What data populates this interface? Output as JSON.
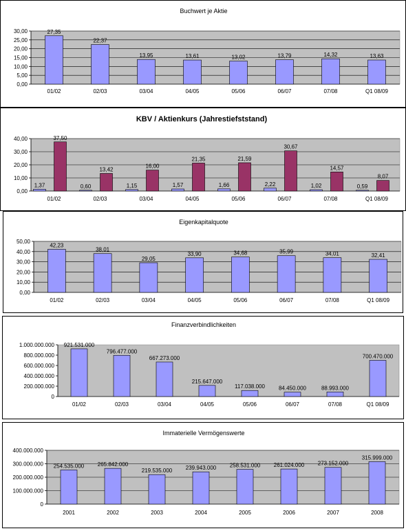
{
  "colors": {
    "bar_primary": "#9999ff",
    "bar_secondary": "#993366",
    "plot_background": "#c0c0c0",
    "gridline": "#000000",
    "bar_outline": "#000000"
  },
  "chart_data": [
    {
      "type": "bar",
      "title": "Buchwert je Aktie",
      "categories": [
        "01/02",
        "02/03",
        "03/04",
        "04/05",
        "05/06",
        "06/07",
        "07/08",
        "Q1 08/09"
      ],
      "series": [
        {
          "values": [
            27.35,
            22.37,
            13.95,
            13.61,
            13.02,
            13.79,
            14.32,
            13.63
          ]
        }
      ],
      "value_labels": [
        "27,35",
        "22,37",
        "13,95",
        "13,61",
        "13,02",
        "13,79",
        "14,32",
        "13,63"
      ],
      "ytick_labels": [
        "30,00",
        "25,00",
        "20,00",
        "15,00",
        "10,00",
        "5,00",
        "0,00"
      ],
      "yticks": [
        30,
        25,
        20,
        15,
        10,
        5,
        0
      ],
      "ylim": [
        0,
        30
      ],
      "grid": true,
      "legend": "none"
    },
    {
      "type": "bar",
      "title": "KBV / Aktienkurs (Jahrestiefststand)",
      "categories": [
        "01/02",
        "02/03",
        "03/04",
        "04/05",
        "05/06",
        "06/07",
        "07/08",
        "Q1 08/09"
      ],
      "series": [
        {
          "values": [
            1.37,
            0.6,
            1.15,
            1.57,
            1.66,
            2.22,
            1.02,
            0.59
          ],
          "value_labels": [
            "1,37",
            "0,60",
            "1,15",
            "1,57",
            "1,66",
            "2,22",
            "1,02",
            "0,59"
          ]
        },
        {
          "values": [
            37.5,
            13.42,
            16.0,
            21.35,
            21.59,
            30.67,
            14.57,
            8.07
          ],
          "value_labels": [
            "37,50",
            "13,42",
            "16,00",
            "21,35",
            "21,59",
            "30,67",
            "14,57",
            "8,07"
          ]
        }
      ],
      "ytick_labels": [
        "40,00",
        "30,00",
        "20,00",
        "10,00",
        "0,00"
      ],
      "yticks": [
        40,
        30,
        20,
        10,
        0
      ],
      "ylim": [
        0,
        40
      ],
      "grid": true,
      "legend": "none"
    },
    {
      "type": "bar",
      "title": "Eigenkapitalquote",
      "categories": [
        "01/02",
        "02/03",
        "03/04",
        "04/05",
        "05/06",
        "06/07",
        "07/08",
        "Q1 08/09"
      ],
      "series": [
        {
          "values": [
            42.23,
            38.01,
            29.05,
            33.9,
            34.68,
            35.99,
            34.01,
            32.41
          ]
        }
      ],
      "value_labels": [
        "42,23",
        "38,01",
        "29,05",
        "33,90",
        "34,68",
        "35,99",
        "34,01",
        "32,41"
      ],
      "ytick_labels": [
        "50,00",
        "40,00",
        "30,00",
        "20,00",
        "10,00",
        "0,00"
      ],
      "yticks": [
        50,
        40,
        30,
        20,
        10,
        0
      ],
      "ylim": [
        0,
        50
      ],
      "grid": true,
      "legend": "none"
    },
    {
      "type": "bar",
      "title": "Finanzverbindlichkeiten",
      "categories": [
        "01/02",
        "02/03",
        "03/04",
        "04/05",
        "05/06",
        "06/07",
        "07/08",
        "Q1 08/09"
      ],
      "series": [
        {
          "values": [
            921531000,
            796477000,
            667273000,
            215647000,
            117038000,
            84450000,
            88993000,
            700470000
          ]
        }
      ],
      "value_labels": [
        "921.531.000",
        "796.477.000",
        "667.273.000",
        "215.647.000",
        "117.038.000",
        "84.450.000",
        "88.993.000",
        "700.470.000"
      ],
      "ytick_labels": [
        "1.000.000.000",
        "800.000.000",
        "600.000.000",
        "400.000.000",
        "200.000.000",
        "0"
      ],
      "yticks": [
        1000000000,
        800000000,
        600000000,
        400000000,
        200000000,
        0
      ],
      "ylim": [
        0,
        1000000000
      ],
      "grid": false,
      "legend": "none"
    },
    {
      "type": "bar",
      "title": "Immaterielle Vermögenswerte",
      "categories": [
        "2001",
        "2002",
        "2003",
        "2004",
        "2005",
        "2006",
        "2007",
        "2008"
      ],
      "series": [
        {
          "values": [
            254535000,
            265842000,
            219535000,
            239943000,
            258531000,
            261024000,
            273152000,
            315999000
          ]
        }
      ],
      "value_labels": [
        "254.535.000",
        "265.842.000",
        "219.535.000",
        "239.943.000",
        "258.531.000",
        "261.024.000",
        "273.152.000",
        "315.999.000"
      ],
      "ytick_labels": [
        "400.000.000",
        "300.000.000",
        "200.000.000",
        "100.000.000",
        "0"
      ],
      "yticks": [
        400000000,
        300000000,
        200000000,
        100000000,
        0
      ],
      "ylim": [
        0,
        400000000
      ],
      "grid": true,
      "legend": "none"
    }
  ]
}
